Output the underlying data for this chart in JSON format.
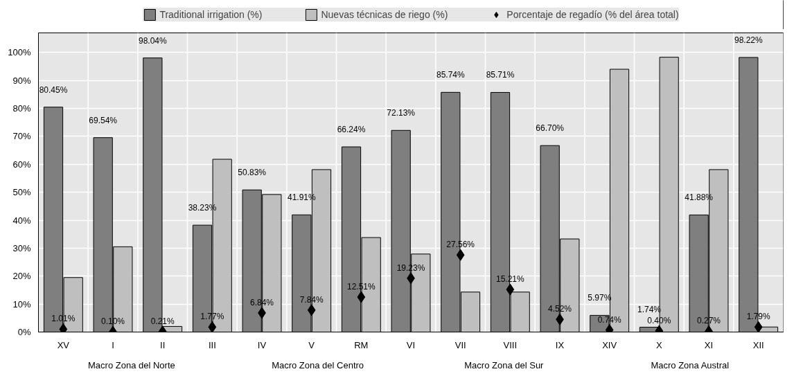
{
  "chart_data": {
    "type": "bar",
    "categories": [
      "XV",
      "I",
      "II",
      "III",
      "IV",
      "V",
      "RM",
      "VI",
      "VII",
      "VIII",
      "IX",
      "XIV",
      "X",
      "XI",
      "XII"
    ],
    "series": [
      {
        "name": "Traditional irrigation (%)",
        "color": "#7f7f7f",
        "values": [
          80.45,
          69.54,
          98.04,
          38.23,
          50.83,
          41.91,
          66.24,
          72.13,
          85.74,
          85.71,
          66.7,
          5.97,
          1.74,
          41.88,
          98.22
        ],
        "value_labels": [
          "80.45%",
          "69.54%",
          "98.04%",
          "38.23%",
          "50.83%",
          "41.91%",
          "66.24%",
          "72.13%",
          "85.74%",
          "85.71%",
          "66.70%",
          "5.97%",
          "1.74%",
          "41.88%",
          "98.22%"
        ]
      },
      {
        "name": "Nuevas técnicas de riego (%)",
        "color": "#bfbfbf",
        "values": [
          19.5,
          30.5,
          2,
          61.8,
          49.2,
          58.1,
          33.8,
          27.9,
          14.3,
          14.3,
          33.3,
          94,
          98.3,
          58.1,
          1.8
        ]
      },
      {
        "name": "Porcentaje de regadío (% del área total)",
        "type": "scatter",
        "marker": "diamond",
        "color": "#000000",
        "values": [
          1.01,
          0.1,
          0.21,
          1.77,
          6.84,
          7.84,
          12.51,
          19.23,
          27.56,
          15.21,
          4.52,
          0.74,
          0.4,
          0.27,
          1.79
        ],
        "value_labels": [
          "1.01%",
          "0.10%",
          "0.21%",
          "1.77%",
          "6.84%",
          "7.84%",
          "12.51%",
          "19.23%",
          "27.56%",
          "15.21%",
          "4.52%",
          "0.74%",
          "0.40%",
          "0.27%",
          "1.79%"
        ]
      }
    ],
    "annotations": [
      "Macro Zona del Norte",
      "Macro Zona del Centro",
      "Macro Zona del Sur",
      "Macro Zona Austral"
    ],
    "ylim": [
      0,
      107
    ],
    "yticks": [
      {
        "value": 0,
        "label": "0%"
      },
      {
        "value": 10,
        "label": "10%"
      },
      {
        "value": 20,
        "label": "20%"
      },
      {
        "value": 30,
        "label": "30%"
      },
      {
        "value": 40,
        "label": "40%"
      },
      {
        "value": 50,
        "label": "50%"
      },
      {
        "value": 60,
        "label": "60%"
      },
      {
        "value": 70,
        "label": "70%"
      },
      {
        "value": 80,
        "label": "80%"
      },
      {
        "value": 90,
        "label": "90%"
      },
      {
        "value": 100,
        "label": "100%"
      }
    ],
    "grid": true,
    "legend": "top"
  }
}
